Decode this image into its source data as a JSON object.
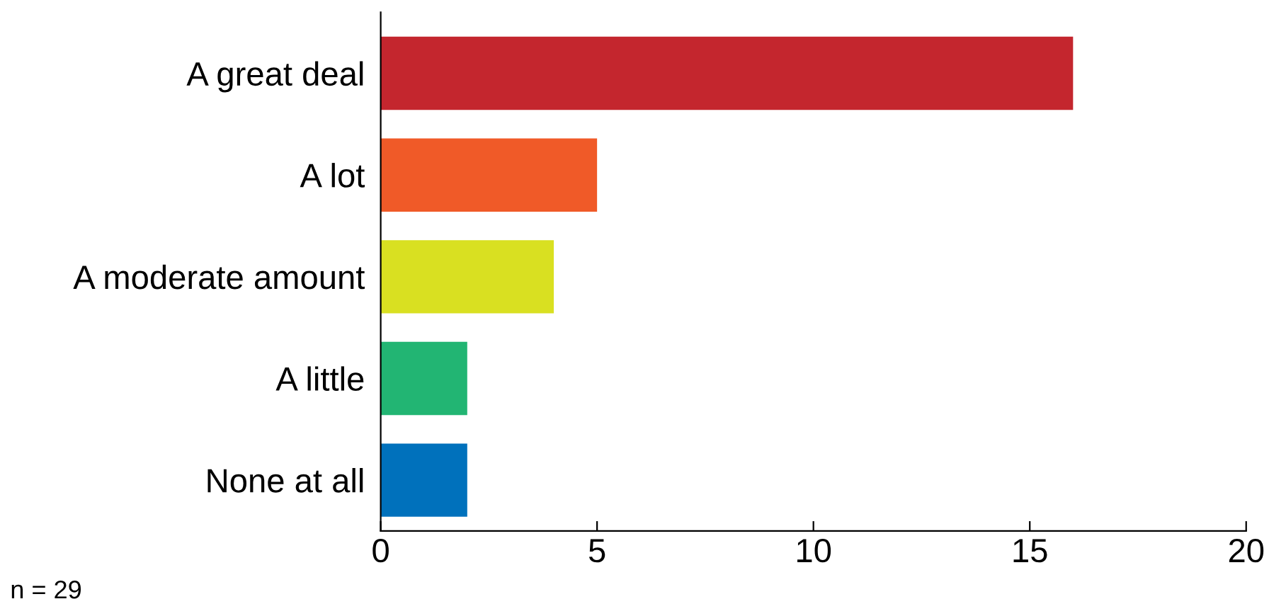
{
  "chart_data": {
    "type": "bar",
    "orientation": "horizontal",
    "categories": [
      "A great deal",
      "A lot",
      "A moderate amount",
      "A little",
      "None at all"
    ],
    "values": [
      16,
      5,
      4,
      2,
      2
    ],
    "colors": [
      "#c4262e",
      "#f05a28",
      "#d9e021",
      "#22b573",
      "#0071bc"
    ],
    "xlim": [
      0,
      20
    ],
    "xticks": [
      0,
      5,
      10,
      15,
      20
    ],
    "grid": false,
    "legend": false,
    "annotations": [
      "n = 29"
    ]
  }
}
